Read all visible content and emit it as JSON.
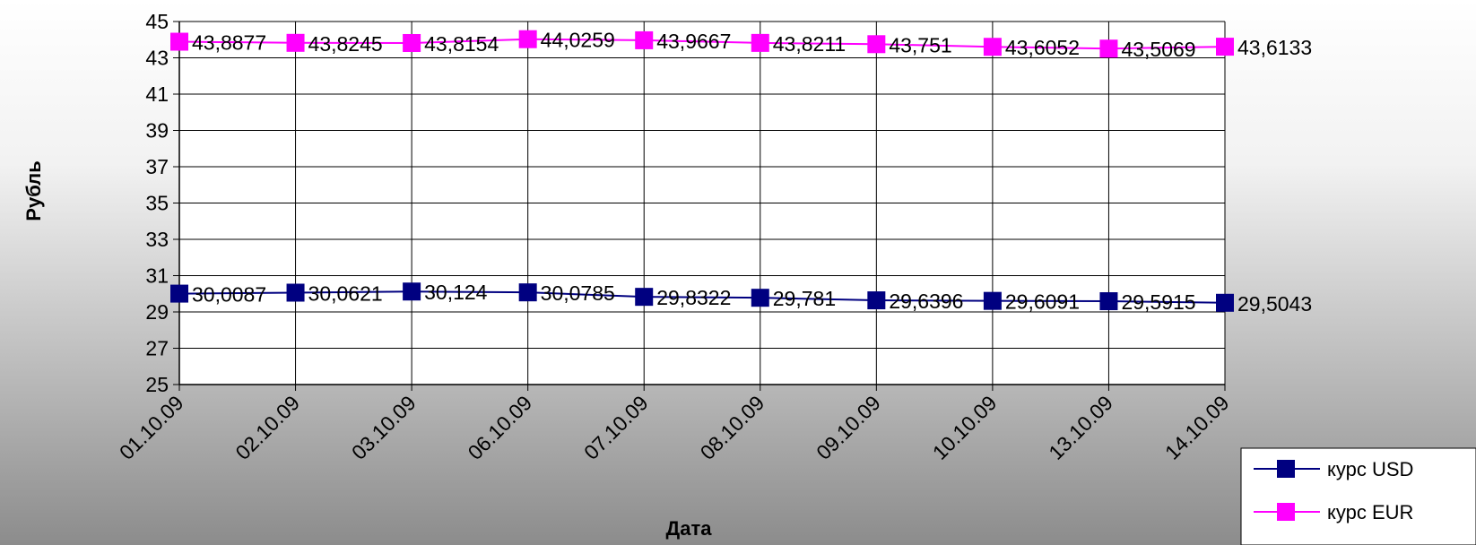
{
  "chart_data": {
    "type": "line",
    "title": "",
    "xlabel": "Дата",
    "ylabel": "Рубль",
    "ylim": [
      25,
      45
    ],
    "yticks": [
      25,
      27,
      29,
      31,
      33,
      35,
      37,
      39,
      41,
      43,
      45
    ],
    "grid": true,
    "legend_position": "bottom-right",
    "categories": [
      "01.10.09",
      "02.10.09",
      "03.10.09",
      "06.10.09",
      "07.10.09",
      "08.10.09",
      "09.10.09",
      "10.10.09",
      "13.10.09",
      "14.10.09"
    ],
    "series": [
      {
        "name": "курс USD",
        "color": "#000080",
        "values": [
          30.0087,
          30.0621,
          30.124,
          30.0785,
          29.8322,
          29.781,
          29.6396,
          29.6091,
          29.5915,
          29.5043
        ],
        "labels": [
          "30,0087",
          "30,0621",
          "30,124",
          "30,0785",
          "29,8322",
          "29,781",
          "29,6396",
          "29,6091",
          "29,5915",
          "29,5043"
        ]
      },
      {
        "name": "курс EUR",
        "color": "#ff00ff",
        "values": [
          43.8877,
          43.8245,
          43.8154,
          44.0259,
          43.9667,
          43.8211,
          43.751,
          43.6052,
          43.5069,
          43.6133
        ],
        "labels": [
          "43,8877",
          "43,8245",
          "43,8154",
          "44,0259",
          "43,9667",
          "43,8211",
          "43,751",
          "43,6052",
          "43,5069",
          "43,6133"
        ]
      }
    ]
  }
}
